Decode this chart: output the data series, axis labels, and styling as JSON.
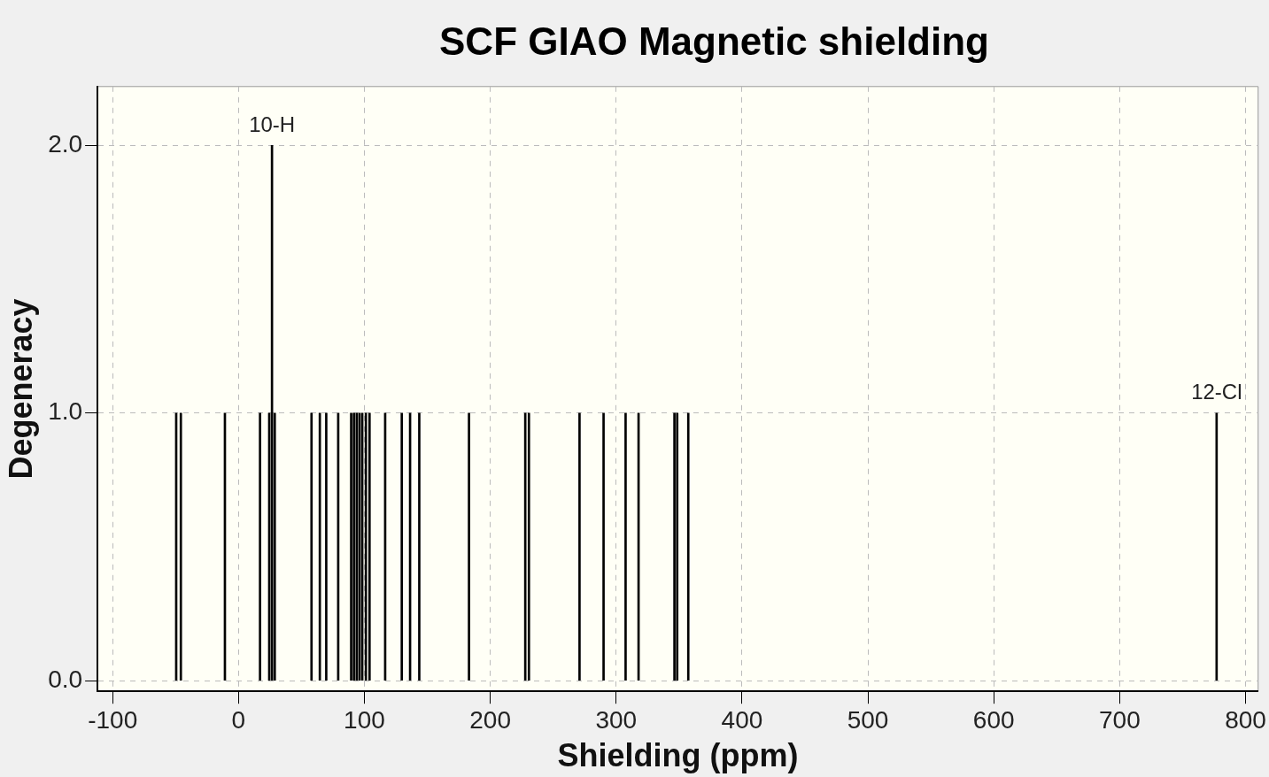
{
  "chart_data": {
    "type": "bar",
    "title": "SCF GIAO Magnetic shielding",
    "xlabel": "Shielding (ppm)",
    "ylabel": "Degeneracy",
    "x": [
      -49.5,
      -45.8,
      -10.8,
      17.1,
      24.4,
      26.6,
      28.8,
      58,
      64.6,
      69.7,
      79.2,
      89.5,
      91.7,
      93.9,
      96.1,
      98.3,
      101.2,
      104.1,
      116.5,
      129.7,
      136.3,
      143.6,
      183.1,
      227.8,
      230.7,
      270.9,
      290,
      307.5,
      317.8,
      346.3,
      348.5,
      357.3,
      777
    ],
    "values": [
      1,
      1,
      1,
      1,
      1,
      2,
      1,
      1,
      1,
      1,
      1,
      1,
      1,
      1,
      1,
      1,
      1,
      1,
      1,
      1,
      1,
      1,
      1,
      1,
      1,
      1,
      1,
      1,
      1,
      1,
      1,
      1,
      1
    ],
    "color": "#000000",
    "xlim": [
      -112,
      810
    ],
    "ylim": [
      -0.04,
      2.22
    ],
    "xticks": [
      -100,
      0,
      100,
      200,
      300,
      400,
      500,
      600,
      700,
      800
    ],
    "yticks": [
      {
        "value": 0,
        "label": "0.0"
      },
      {
        "value": 1,
        "label": "1.0"
      },
      {
        "value": 2,
        "label": "2.0"
      }
    ],
    "grid": true,
    "legend": false,
    "annotations": [
      {
        "text": "10-H",
        "x": 26.6,
        "y": 2
      },
      {
        "text": "12-Cl",
        "x": 777,
        "y": 1
      }
    ]
  }
}
